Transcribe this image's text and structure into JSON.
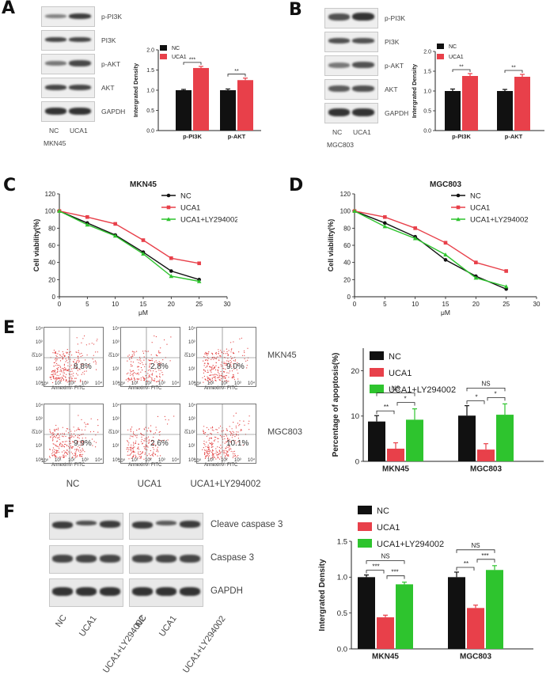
{
  "colors": {
    "nc": "#111111",
    "uca1": "#e8404a",
    "ly": "#2ec42e"
  },
  "panels": {
    "A": "A",
    "B": "B",
    "C": "C",
    "D": "D",
    "E": "E",
    "F": "F"
  },
  "blots_A": {
    "rows": [
      "p-PI3K",
      "PI3K",
      "p-AKT",
      "AKT",
      "GAPDH"
    ],
    "lanes": [
      "NC",
      "UCA1"
    ],
    "cell": "MKN45"
  },
  "blots_B": {
    "rows": [
      "p-PI3K",
      "PI3K",
      "p-AKT",
      "AKT",
      "GAPDH"
    ],
    "lanes": [
      "NC",
      "UCA1"
    ],
    "cell": "MGC803"
  },
  "blots_F": {
    "rows": [
      "Cleave caspase 3",
      "Caspase 3",
      "GAPDH"
    ],
    "lanes": [
      "NC",
      "UCA1",
      "UCA1+LY294002"
    ]
  },
  "flow": {
    "rows": [
      "MKN45",
      "MGC803"
    ],
    "cols": [
      "NC",
      "UCA1",
      "UCA1+LY294002"
    ],
    "pcts": [
      [
        "8.8%",
        "2.8%",
        "9.0%"
      ],
      [
        "9.9%",
        "2.6%",
        "10.1%"
      ]
    ],
    "xlabel": "AnnexinV- FITC",
    "ylabel": "PI",
    "ticks": [
      "10⁰",
      "10¹",
      "10²",
      "10³",
      "10⁴"
    ]
  },
  "chart_data": [
    {
      "id": "A",
      "type": "bar",
      "title": "",
      "categories": [
        "p-PI3K",
        "p-AKT"
      ],
      "series": [
        {
          "name": "NC",
          "values": [
            1.0,
            1.0
          ],
          "err": [
            0.02,
            0.03
          ]
        },
        {
          "name": "UCA1",
          "values": [
            1.55,
            1.25
          ],
          "err": [
            0.04,
            0.05
          ]
        }
      ],
      "ylabel": "Intergrated Density",
      "ylim": [
        0,
        2.0
      ],
      "yticks": [
        "0.0",
        "0.5",
        "1.0",
        "1.5",
        "2.0"
      ],
      "sig": [
        "***",
        "**"
      ],
      "legend": "top-left"
    },
    {
      "id": "B",
      "type": "bar",
      "title": "",
      "categories": [
        "p-PI3K",
        "p-AKT"
      ],
      "series": [
        {
          "name": "NC",
          "values": [
            1.0,
            1.0
          ],
          "err": [
            0.05,
            0.04
          ]
        },
        {
          "name": "UCA1",
          "values": [
            1.38,
            1.36
          ],
          "err": [
            0.06,
            0.06
          ]
        }
      ],
      "ylabel": "Intergrated Density",
      "ylim": [
        0,
        2.0
      ],
      "yticks": [
        "0.0",
        "0.5",
        "1.0",
        "1.5",
        "2.0"
      ],
      "sig": [
        "**",
        "**"
      ],
      "legend": "top-left"
    },
    {
      "id": "C",
      "type": "line",
      "title": "MKN45",
      "x": [
        0,
        5,
        10,
        15,
        20,
        25
      ],
      "series": [
        {
          "name": "NC",
          "values": [
            100,
            86,
            72,
            52,
            30,
            20
          ]
        },
        {
          "name": "UCA1",
          "values": [
            100,
            93,
            85,
            66,
            45,
            39
          ]
        },
        {
          "name": "UCA1+LY294002",
          "values": [
            100,
            84,
            71,
            50,
            24,
            18
          ]
        }
      ],
      "xlabel": "μM",
      "ylabel": "Cell viability(%)",
      "xlim": [
        0,
        30
      ],
      "ylim": [
        0,
        120
      ],
      "xticks": [
        "0",
        "5",
        "10",
        "15",
        "20",
        "25",
        "30"
      ],
      "yticks": [
        "0",
        "20",
        "40",
        "60",
        "80",
        "100",
        "120"
      ],
      "legend": "top-right"
    },
    {
      "id": "D",
      "type": "line",
      "title": "MGC803",
      "x": [
        0,
        5,
        10,
        15,
        20,
        25
      ],
      "series": [
        {
          "name": "NC",
          "values": [
            100,
            86,
            70,
            43,
            24,
            9
          ]
        },
        {
          "name": "UCA1",
          "values": [
            100,
            93,
            80,
            63,
            40,
            30
          ]
        },
        {
          "name": "UCA1+LY294002",
          "values": [
            100,
            82,
            68,
            49,
            22,
            12
          ]
        }
      ],
      "xlabel": "μM",
      "ylabel": "Cell viability(%)",
      "xlim": [
        0,
        30
      ],
      "ylim": [
        0,
        120
      ],
      "xticks": [
        "0",
        "5",
        "10",
        "15",
        "20",
        "25",
        "30"
      ],
      "yticks": [
        "0",
        "20",
        "40",
        "60",
        "80",
        "100",
        "120"
      ],
      "legend": "top-right"
    },
    {
      "id": "E",
      "type": "bar",
      "title": "",
      "categories": [
        "MKN45",
        "MGC803"
      ],
      "series": [
        {
          "name": "NC",
          "values": [
            8.8,
            10.1
          ],
          "err": [
            1.3,
            2.2
          ]
        },
        {
          "name": "UCA1",
          "values": [
            2.8,
            2.6
          ],
          "err": [
            1.3,
            1.3
          ]
        },
        {
          "name": "UCA1+LY294002",
          "values": [
            9.2,
            10.3
          ],
          "err": [
            2.4,
            2.4
          ]
        }
      ],
      "ylabel": "Percentage of apoptosis(%)",
      "ylim": [
        0,
        25
      ],
      "yticks": [
        "0",
        "10",
        "20"
      ],
      "sig_pairs": [
        [
          "**",
          "*",
          "NS"
        ],
        [
          "*",
          "*",
          "NS"
        ]
      ],
      "legend": "top-left"
    },
    {
      "id": "F",
      "type": "bar",
      "title": "",
      "categories": [
        "MKN45",
        "MGC803"
      ],
      "series": [
        {
          "name": "NC",
          "values": [
            1.0,
            1.0
          ],
          "err": [
            0.03,
            0.07
          ]
        },
        {
          "name": "UCA1",
          "values": [
            0.44,
            0.57
          ],
          "err": [
            0.03,
            0.04
          ]
        },
        {
          "name": "UCA1+LY294002",
          "values": [
            0.9,
            1.1
          ],
          "err": [
            0.03,
            0.06
          ]
        }
      ],
      "ylabel": "Intergrated Density",
      "ylim": [
        0,
        1.5
      ],
      "yticks": [
        "0.0",
        "0.5",
        "1.0",
        "1.5"
      ],
      "sig_pairs": [
        [
          "***",
          "***",
          "NS"
        ],
        [
          "**",
          "***",
          "NS"
        ]
      ],
      "legend": "top-left"
    }
  ]
}
